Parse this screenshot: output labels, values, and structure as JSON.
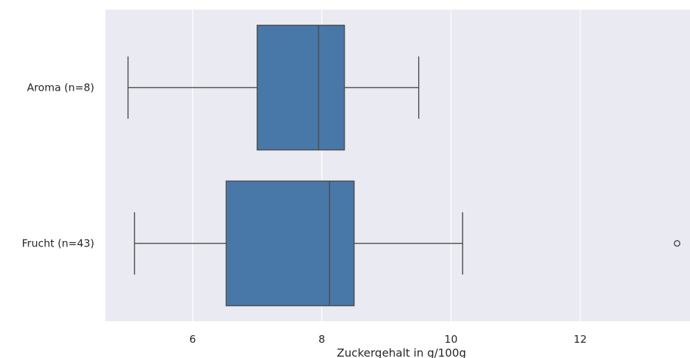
{
  "chart_data": {
    "type": "boxplot",
    "orientation": "horizontal",
    "title": "",
    "xlabel": "Zuckergehalt in g/100g",
    "ylabel": "",
    "xlim": [
      4.65,
      13.7
    ],
    "xticks": [
      6,
      8,
      10,
      12
    ],
    "grid": true,
    "background_color": "#eaeaf2",
    "box_color": "#4878a8",
    "line_color": "#4d4d4d",
    "categories": [
      "Aroma (n=8)",
      "Frucht (n=43)"
    ],
    "boxes": [
      {
        "label": "Aroma (n=8)",
        "whisker_low": 5.0,
        "q1": 7.0,
        "median": 7.95,
        "q3": 8.35,
        "whisker_high": 9.5,
        "outliers": []
      },
      {
        "label": "Frucht (n=43)",
        "whisker_low": 5.1,
        "q1": 6.52,
        "median": 8.12,
        "q3": 8.5,
        "whisker_high": 10.18,
        "outliers": [
          13.5
        ]
      }
    ]
  }
}
